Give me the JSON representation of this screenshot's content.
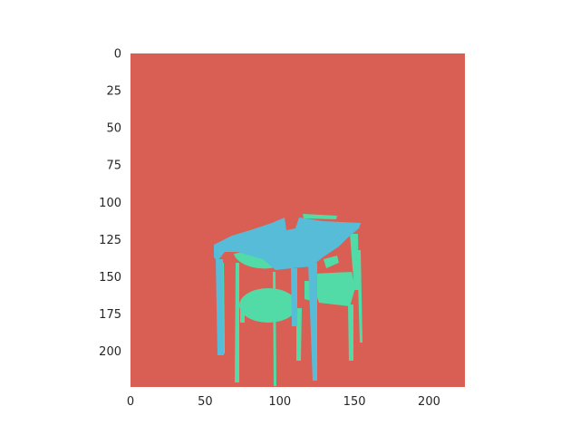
{
  "figure": {
    "x_ticks": [
      "0",
      "50",
      "100",
      "150",
      "200"
    ],
    "y_ticks": [
      "0",
      "25",
      "50",
      "75",
      "100",
      "125",
      "150",
      "175",
      "200"
    ],
    "x_range": [
      0,
      224
    ],
    "y_range": [
      0,
      224
    ],
    "y_inverted": true,
    "grid": false,
    "colors": {
      "background_class": "#d95f55",
      "table_top_class": "#56bcd8",
      "chair_class": "#52dba6"
    }
  }
}
